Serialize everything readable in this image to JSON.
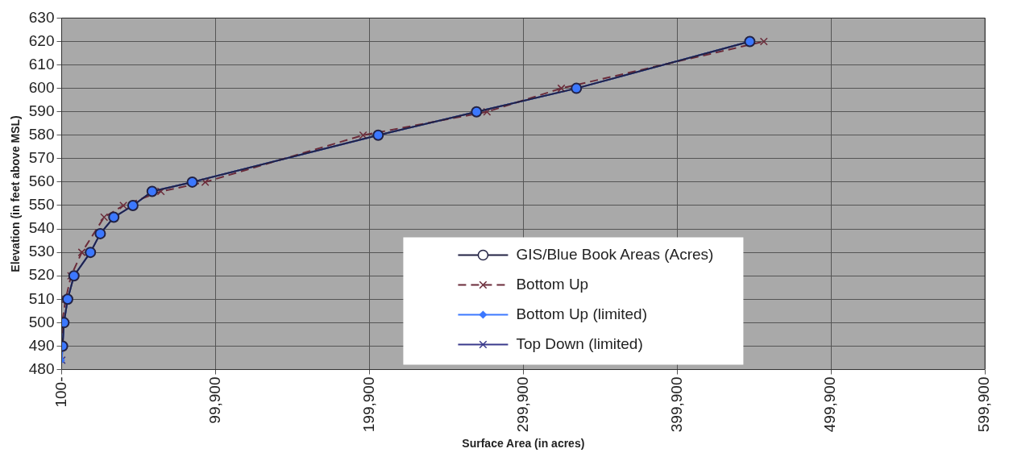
{
  "chart_data": {
    "type": "line",
    "xlabel": "Surface Area (in acres)",
    "ylabel": "Elevation (in feet above MSL)",
    "xlim": [
      -100,
      599900
    ],
    "xticks": [
      {
        "value": -100,
        "label": "100-"
      },
      {
        "value": 99900,
        "label": "99,900"
      },
      {
        "value": 199900,
        "label": "199,900"
      },
      {
        "value": 299900,
        "label": "299,900"
      },
      {
        "value": 399900,
        "label": "399,900"
      },
      {
        "value": 499900,
        "label": "499,900"
      },
      {
        "value": 599900,
        "label": "599,900"
      }
    ],
    "ylim": [
      480,
      630
    ],
    "yticks": [
      480,
      490,
      500,
      510,
      520,
      530,
      540,
      550,
      560,
      570,
      580,
      590,
      600,
      610,
      620,
      630
    ],
    "grid": true,
    "legend": "bottom right",
    "series": [
      {
        "name": "GIS/Blue Book Areas (Acres)",
        "color": "#222244",
        "marker": "circle",
        "line_style": "solid",
        "x": [
          500,
          1400,
          3800,
          7900,
          18600,
          25000,
          33800,
          46200,
          58700,
          84800,
          205600,
          269500,
          334400,
          447100
        ],
        "values": [
          490,
          500,
          510,
          520,
          530,
          538,
          545,
          550,
          556,
          560,
          580,
          590,
          600,
          620
        ]
      },
      {
        "name": "Bottom Up",
        "color": "#6b2c3a",
        "marker": "cross",
        "line_style": "dashed",
        "x": [
          0,
          200,
          2500,
          6000,
          13000,
          27500,
          40000,
          64400,
          93200,
          195800,
          276300,
          324600,
          456200
        ],
        "values": [
          490,
          500,
          510,
          520,
          530,
          545,
          550,
          556,
          560,
          580,
          590,
          600,
          620
        ]
      },
      {
        "name": "Bottom Up (limited)",
        "color": "#3c78ff",
        "marker": "diamond",
        "line_style": "solid",
        "x": [
          0,
          500,
          1400,
          3800,
          7900,
          18600,
          25000,
          33800,
          46200,
          58700,
          84800,
          205600,
          269500,
          334400,
          447100
        ],
        "values": [
          484,
          490,
          500,
          510,
          520,
          530,
          538,
          545,
          550,
          556,
          560,
          580,
          590,
          600,
          620
        ]
      },
      {
        "name": "Top Down (limited)",
        "color": "#3a3a8c",
        "marker": "cross",
        "line_style": "solid",
        "x": [
          0,
          500,
          1400,
          3800,
          7900,
          18600,
          25000,
          33800,
          46200,
          58700,
          84800,
          205600,
          269500,
          334400,
          447100
        ],
        "values": [
          484,
          490,
          500,
          510,
          520,
          530,
          538,
          545,
          550,
          556,
          560,
          580,
          590,
          600,
          620
        ]
      }
    ]
  }
}
